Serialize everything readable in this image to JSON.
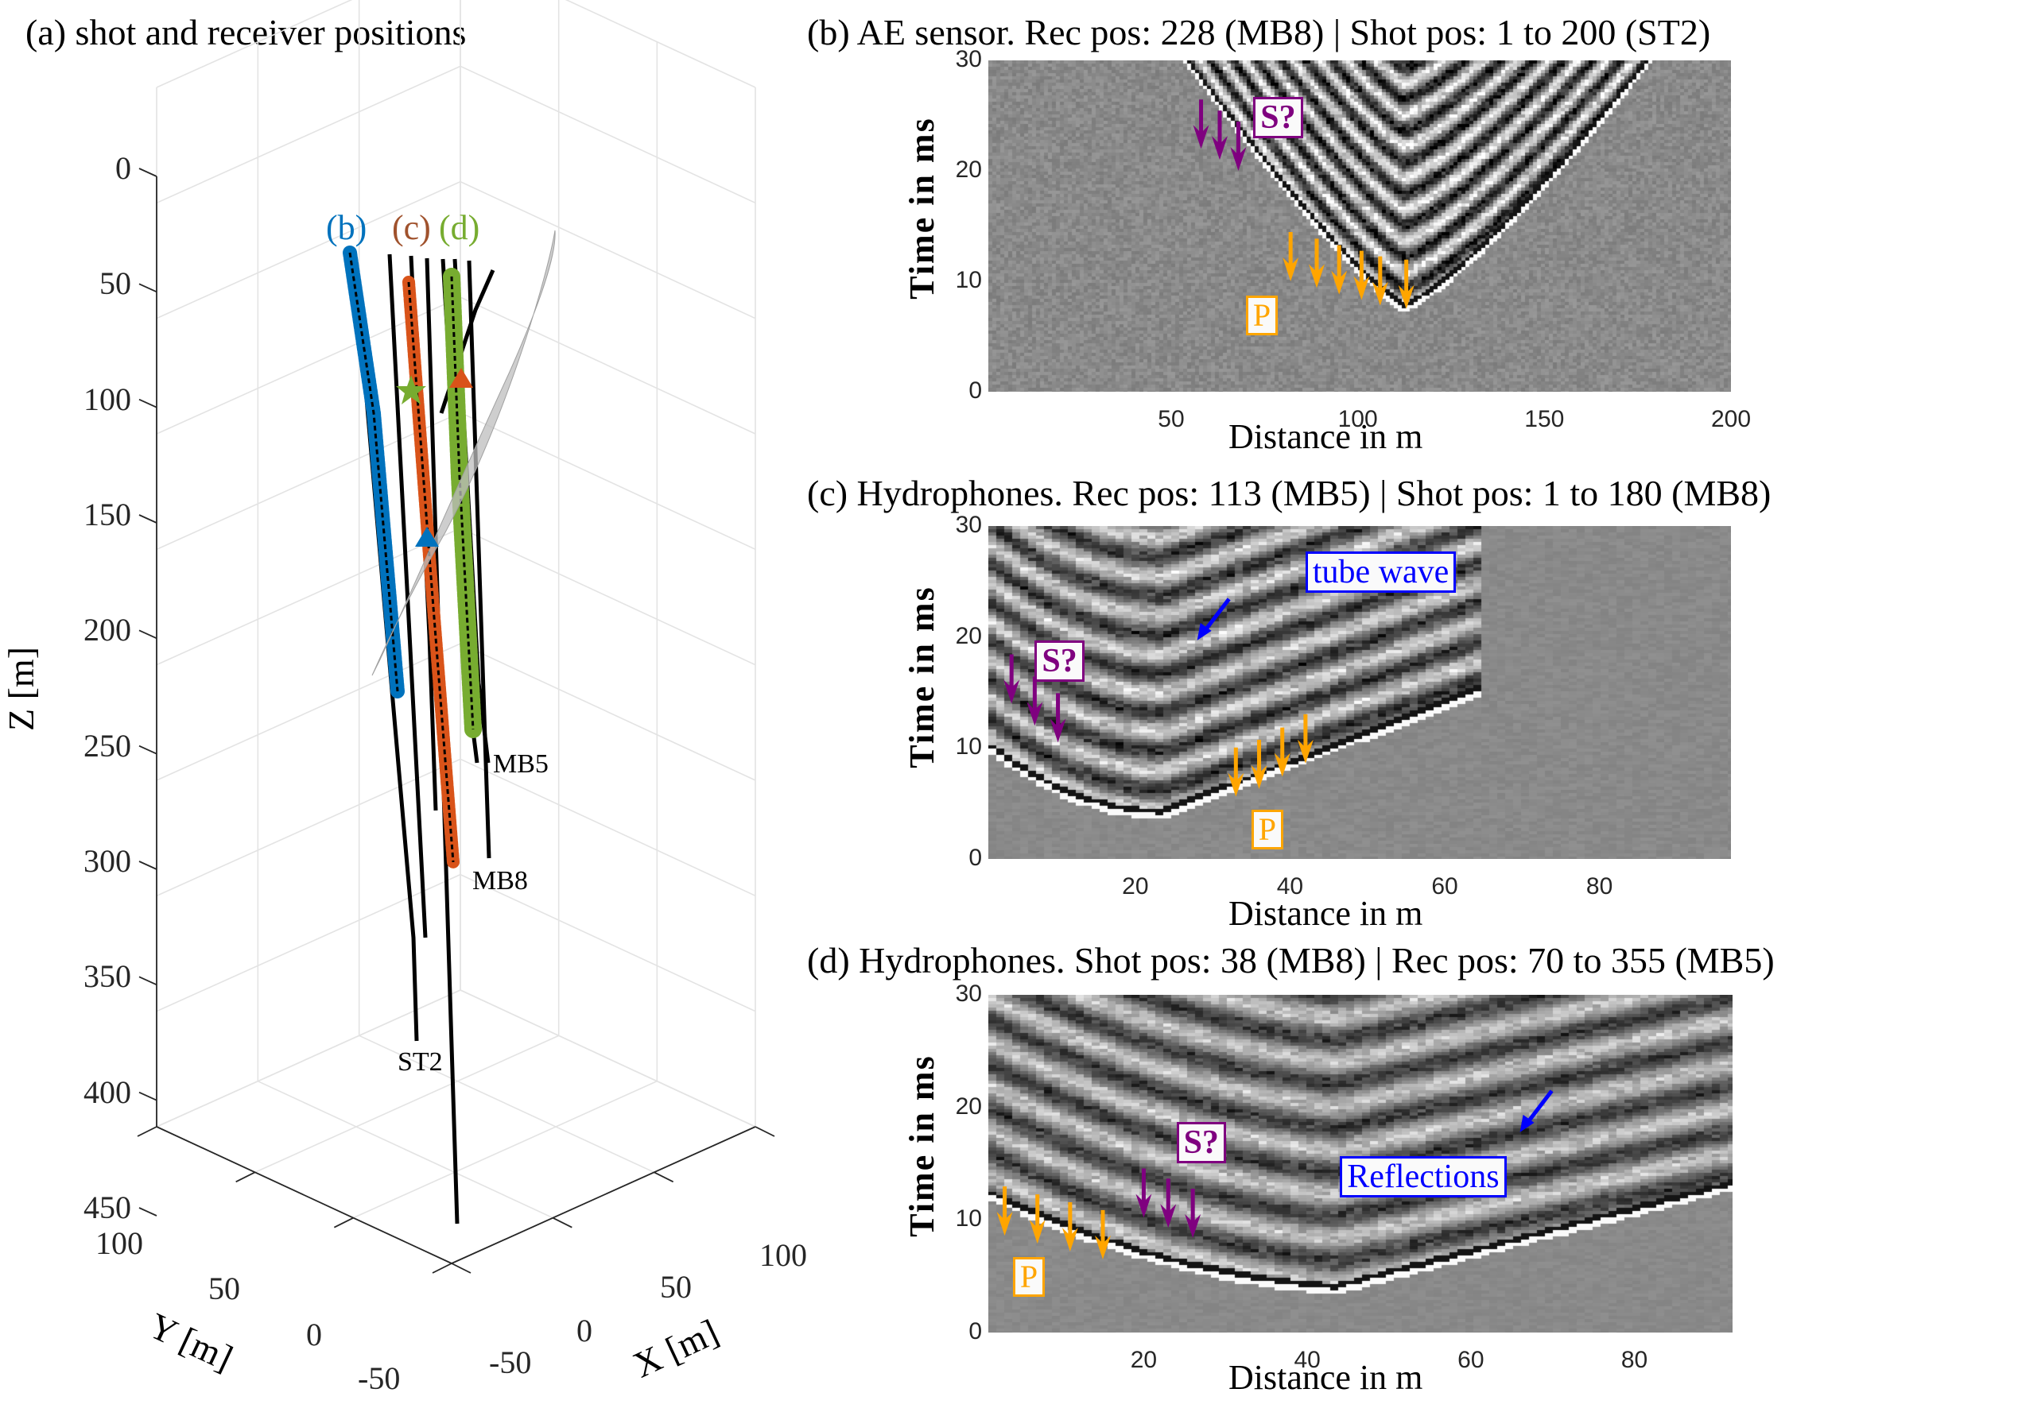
{
  "chart_data": [
    {
      "id": "a",
      "type": "scatter",
      "title": "(a) shot and receiver positions",
      "view": "3d",
      "xlabel": "X [m]",
      "ylabel": "Y [m]",
      "zlabel": "Z [m]",
      "xticks": [
        "-50",
        "0",
        "50",
        "100"
      ],
      "yticks": [
        "-50",
        "0",
        "50",
        "100"
      ],
      "zticks": [
        "0",
        "50",
        "100",
        "150",
        "200",
        "250",
        "300",
        "350",
        "400",
        "450"
      ],
      "xlim": [
        -50,
        100
      ],
      "ylim": [
        -50,
        100
      ],
      "zlim": [
        0,
        450
      ],
      "zdirection": "reversed",
      "grid": true,
      "series": [
        {
          "name": "(b)",
          "color": "#0072bd",
          "marker": "star",
          "description": "AE sensor shot positions along ST2"
        },
        {
          "name": "(c)",
          "color": "#d95319",
          "marker": "star",
          "description": "hydrophone shot positions along MB8"
        },
        {
          "name": "(d)",
          "color": "#77ac30",
          "marker": "square",
          "description": "hydrophone receiver positions along MB5"
        }
      ],
      "wells": [
        "MB5",
        "MB8",
        "ST2"
      ],
      "special_markers": [
        {
          "shape": "star",
          "color": "#77ac30",
          "z_approx": 90
        },
        {
          "shape": "triangle",
          "color": "#d95319",
          "z_approx": 88
        },
        {
          "shape": "triangle",
          "color": "#0072bd",
          "z_approx": 155
        }
      ],
      "surface": {
        "color": "#bdbdbd",
        "description": "inclined fault/shear-zone plane"
      }
    },
    {
      "id": "b",
      "type": "heatmap",
      "title": "(b) AE sensor. Rec pos: 228 (MB8) | Shot pos: 1 to 200 (ST2)",
      "xlabel": "Distance in m",
      "ylabel": "Time in ms",
      "xticks": [
        50,
        100,
        150,
        200
      ],
      "yticks": [
        0,
        10,
        20,
        30
      ],
      "xlim": [
        1,
        200
      ],
      "ylim": [
        0,
        30
      ],
      "colormap": "gray",
      "first_arrival_apex": {
        "x": 112,
        "t": 7.3
      },
      "annotations": [
        {
          "text": "S?",
          "kind": "S",
          "label_at": {
            "x": 72,
            "t": 25
          },
          "arrows": [
            {
              "x": 58,
              "t": 22
            },
            {
              "x": 63,
              "t": 21
            },
            {
              "x": 68,
              "t": 20
            }
          ]
        },
        {
          "text": "P",
          "kind": "P",
          "label_at": {
            "x": 70,
            "t": 7
          },
          "arrows": [
            {
              "x": 82,
              "t": 10
            },
            {
              "x": 89,
              "t": 9.4
            },
            {
              "x": 95,
              "t": 8.8
            },
            {
              "x": 101,
              "t": 8.3
            },
            {
              "x": 106,
              "t": 7.8
            },
            {
              "x": 113,
              "t": 7.5
            }
          ]
        }
      ]
    },
    {
      "id": "c",
      "type": "heatmap",
      "title": "(c) Hydrophones. Rec pos: 113 (MB5) | Shot pos: 1 to 180 (MB8)",
      "xlabel": "Distance in m",
      "ylabel": "Time in ms",
      "xticks": [
        20,
        40,
        60,
        80
      ],
      "yticks": [
        0,
        10,
        20,
        30
      ],
      "xlim": [
        1,
        97
      ],
      "ylim": [
        0,
        30
      ],
      "colormap": "gray",
      "first_arrival_apex": {
        "x": 23,
        "t": 3.7
      },
      "annotations": [
        {
          "text": "tube wave",
          "kind": "blue",
          "label_at": {
            "x": 42,
            "t": 26
          },
          "arrows": [
            {
              "x": 28,
              "t": 19.7
            }
          ]
        },
        {
          "text": "S?",
          "kind": "S",
          "label_at": {
            "x": 7,
            "t": 18
          },
          "arrows": [
            {
              "x": 4,
              "t": 14
            },
            {
              "x": 7,
              "t": 12
            },
            {
              "x": 10,
              "t": 10.5
            }
          ]
        },
        {
          "text": "P",
          "kind": "P",
          "label_at": {
            "x": 35,
            "t": 2.7
          },
          "arrows": [
            {
              "x": 33,
              "t": 5.6
            },
            {
              "x": 36,
              "t": 6.3
            },
            {
              "x": 39,
              "t": 7.4
            },
            {
              "x": 42,
              "t": 8.6
            }
          ]
        }
      ]
    },
    {
      "id": "d",
      "type": "heatmap",
      "title": "(d) Hydrophones. Shot pos: 38 (MB8) | Rec pos: 70 to 355 (MB5)",
      "xlabel": "Distance in m",
      "ylabel": "Time in ms",
      "xticks": [
        20,
        40,
        60,
        80
      ],
      "yticks": [
        0,
        10,
        20,
        30
      ],
      "xlim": [
        1,
        92
      ],
      "ylim": [
        0,
        30
      ],
      "colormap": "gray",
      "first_arrival_apex": {
        "x": 43,
        "t": 3.5
      },
      "annotations": [
        {
          "text": "Reflections",
          "kind": "blue",
          "label_at": {
            "x": 44,
            "t": 14
          },
          "arrows": [
            {
              "x": 66,
              "t": 17.8
            }
          ]
        },
        {
          "text": "S?",
          "kind": "S",
          "label_at": {
            "x": 24,
            "t": 17
          },
          "arrows": [
            {
              "x": 20,
              "t": 10.2
            },
            {
              "x": 23,
              "t": 9.3
            },
            {
              "x": 26,
              "t": 8.4
            }
          ]
        },
        {
          "text": "P",
          "kind": "P",
          "label_at": {
            "x": 4,
            "t": 5
          },
          "arrows": [
            {
              "x": 3,
              "t": 8.6
            },
            {
              "x": 7,
              "t": 7.9
            },
            {
              "x": 11,
              "t": 7.2
            },
            {
              "x": 15,
              "t": 6.5
            }
          ]
        }
      ]
    }
  ],
  "colors": {
    "s_wave": "#7f007f",
    "p_wave": "#ffa500",
    "blue_annotation": "#0000ff",
    "series_b": "#0072bd",
    "series_c": "#d95319",
    "series_d": "#77ac30",
    "fault_plane": "#bdbdbd"
  }
}
